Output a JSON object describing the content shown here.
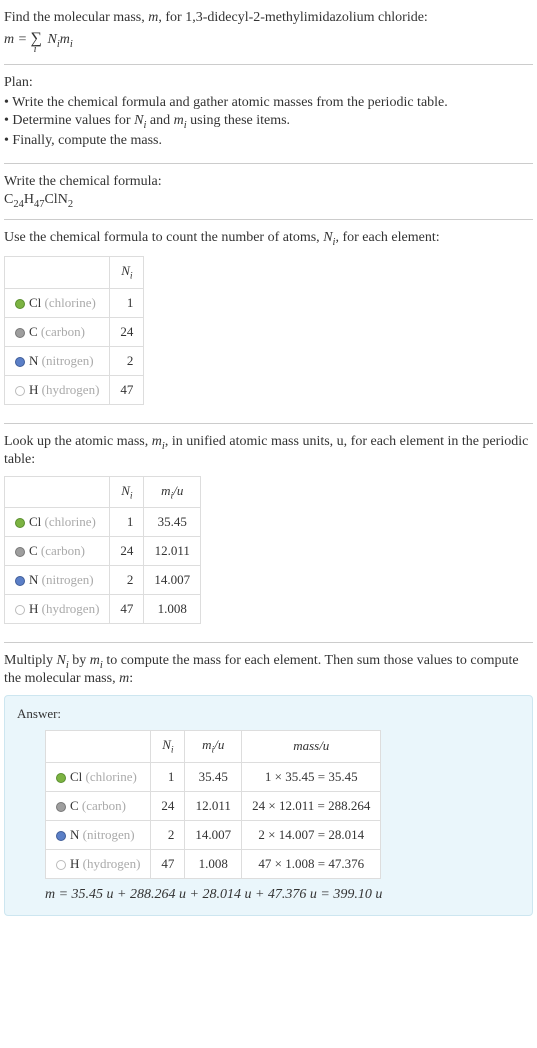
{
  "intro": {
    "line1_prefix": "Find the molecular mass, ",
    "line1_m": "m",
    "line1_mid": ", for 1,3-didecyl-2-methylimidazolium chloride:",
    "formula_lhs": "m = ",
    "formula_sum": "∑",
    "formula_sub": "i",
    "formula_rhs": " N",
    "formula_rhs2": "m"
  },
  "plan": {
    "title": "Plan:",
    "items": [
      "Write the chemical formula and gather atomic masses from the periodic table.",
      "Determine values for Nᵢ and mᵢ using these items.",
      "Finally, compute the mass."
    ]
  },
  "step1": {
    "title": "Write the chemical formula:",
    "formula_parts": [
      "C",
      "24",
      "H",
      "47",
      "ClN",
      "2"
    ]
  },
  "step2": {
    "title_prefix": "Use the chemical formula to count the number of atoms, ",
    "title_var": "N",
    "title_sub": "i",
    "title_suffix": ", for each element:",
    "table": {
      "header_ni": "N",
      "header_ni_sub": "i",
      "rows": [
        {
          "dot_fill": "#7cb342",
          "dot_border": "#5a8f2f",
          "sym": "Cl",
          "name": "(chlorine)",
          "ni": "1"
        },
        {
          "dot_fill": "#9e9e9e",
          "dot_border": "#777",
          "sym": "C",
          "name": "(carbon)",
          "ni": "24"
        },
        {
          "dot_fill": "#5b7fc7",
          "dot_border": "#3f5d99",
          "sym": "N",
          "name": "(nitrogen)",
          "ni": "2"
        },
        {
          "dot_fill": "#ffffff",
          "dot_border": "#bbb",
          "sym": "H",
          "name": "(hydrogen)",
          "ni": "47"
        }
      ]
    }
  },
  "step3": {
    "title_prefix": "Look up the atomic mass, ",
    "title_var": "m",
    "title_sub": "i",
    "title_suffix": ", in unified atomic mass units, u, for each element in the periodic table:",
    "table": {
      "header_ni": "N",
      "header_ni_sub": "i",
      "header_mi": "m",
      "header_mi_sub": "i",
      "header_mi_unit": "/u",
      "rows": [
        {
          "dot_fill": "#7cb342",
          "dot_border": "#5a8f2f",
          "sym": "Cl",
          "name": "(chlorine)",
          "ni": "1",
          "mi": "35.45"
        },
        {
          "dot_fill": "#9e9e9e",
          "dot_border": "#777",
          "sym": "C",
          "name": "(carbon)",
          "ni": "24",
          "mi": "12.011"
        },
        {
          "dot_fill": "#5b7fc7",
          "dot_border": "#3f5d99",
          "sym": "N",
          "name": "(nitrogen)",
          "ni": "2",
          "mi": "14.007"
        },
        {
          "dot_fill": "#ffffff",
          "dot_border": "#bbb",
          "sym": "H",
          "name": "(hydrogen)",
          "ni": "47",
          "mi": "1.008"
        }
      ]
    }
  },
  "step4": {
    "title_prefix": "Multiply ",
    "title_n": "N",
    "title_sub": "i",
    "title_mid": " by ",
    "title_m": "m",
    "title_suffix": " to compute the mass for each element. Then sum those values to compute the molecular mass, ",
    "title_mvar": "m",
    "title_end": ":"
  },
  "answer": {
    "label": "Answer:",
    "table": {
      "header_ni": "N",
      "header_ni_sub": "i",
      "header_mi": "m",
      "header_mi_sub": "i",
      "header_mi_unit": "/u",
      "header_mass": "mass/u",
      "rows": [
        {
          "dot_fill": "#7cb342",
          "dot_border": "#5a8f2f",
          "sym": "Cl",
          "name": "(chlorine)",
          "ni": "1",
          "mi": "35.45",
          "mass": "1 × 35.45 = 35.45"
        },
        {
          "dot_fill": "#9e9e9e",
          "dot_border": "#777",
          "sym": "C",
          "name": "(carbon)",
          "ni": "24",
          "mi": "12.011",
          "mass": "24 × 12.011 = 288.264"
        },
        {
          "dot_fill": "#5b7fc7",
          "dot_border": "#3f5d99",
          "sym": "N",
          "name": "(nitrogen)",
          "ni": "2",
          "mi": "14.007",
          "mass": "2 × 14.007 = 28.014"
        },
        {
          "dot_fill": "#ffffff",
          "dot_border": "#bbb",
          "sym": "H",
          "name": "(hydrogen)",
          "ni": "47",
          "mi": "1.008",
          "mass": "47 × 1.008 = 47.376"
        }
      ]
    },
    "final": "m = 35.45 u + 288.264 u + 28.014 u + 47.376 u = 399.10 u"
  }
}
